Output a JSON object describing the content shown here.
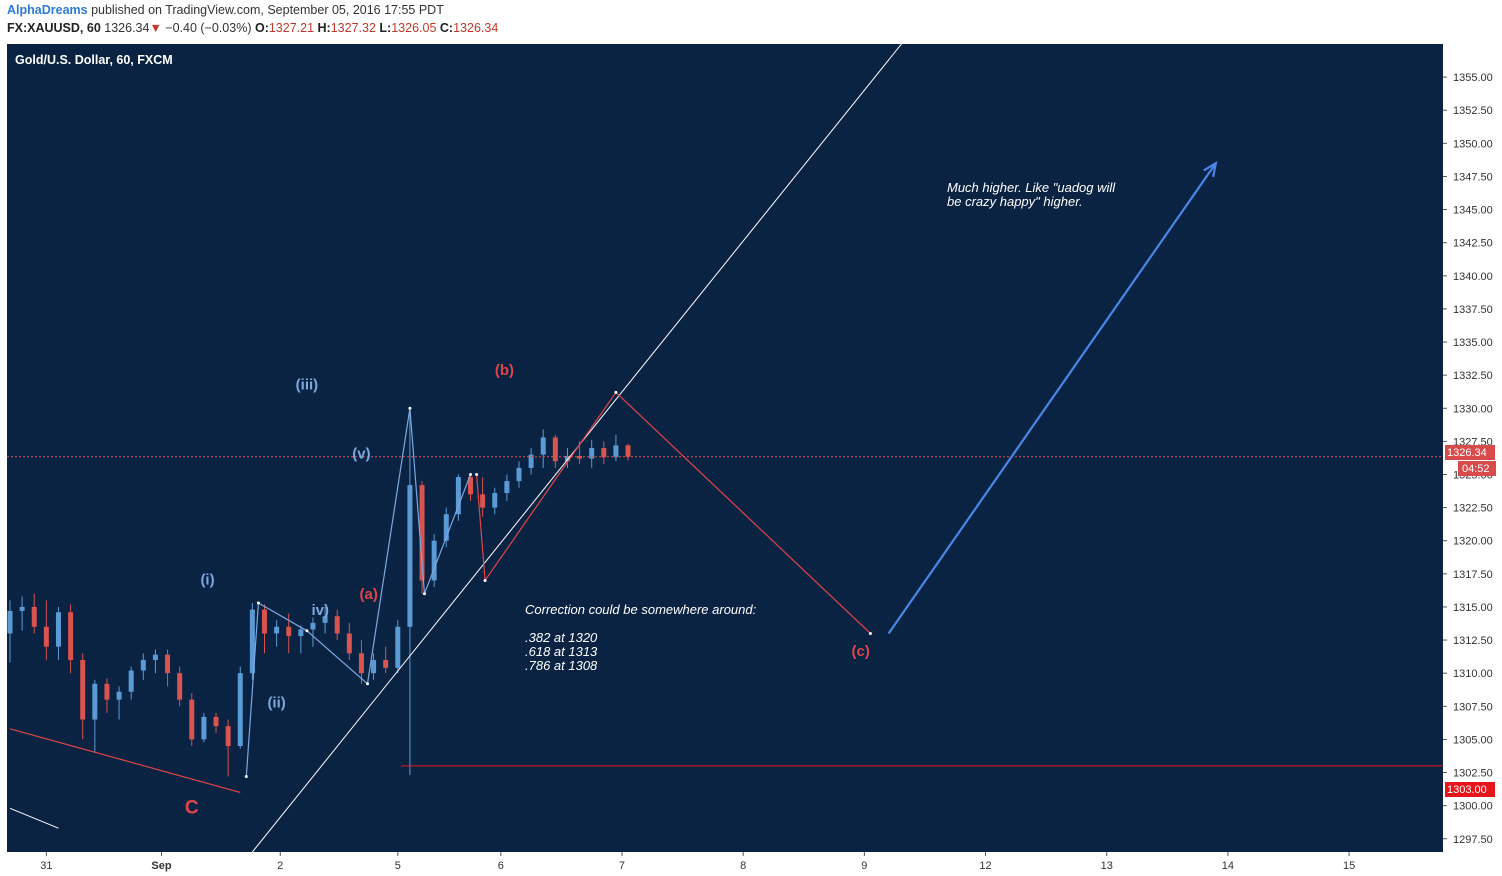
{
  "header": {
    "author": "AlphaDreams",
    "published_text": "published on TradingView.com, September 05, 2016 17:55 PDT",
    "symbol": "FX:XAUUSD, 60",
    "last": "1326.34",
    "change_arrow": "▼",
    "change": "−0.40 (−0.03%)",
    "open_label": "O:",
    "open": "1327.21",
    "high_label": "H:",
    "high": "1327.32",
    "low_label": "L:",
    "low": "1326.05",
    "close_label": "C:",
    "close": "1326.34"
  },
  "colors": {
    "background": "#0a2342",
    "up": "#5b9bd5",
    "down": "#d9534f",
    "wave_blue": "#7fa7e0",
    "wave_red": "#e0454a",
    "arrow": "#4a86e8",
    "trendline": "#ffffff"
  },
  "chart_data": {
    "type": "candlestick",
    "title": "Gold/U.S. Dollar, 60, FXCM",
    "y_range": [
      1296.5,
      1357.5
    ],
    "y_ticks": [
      "1297.50",
      "1300.00",
      "1302.50",
      "1305.00",
      "1307.50",
      "1310.00",
      "1312.50",
      "1315.00",
      "1317.50",
      "1320.00",
      "1322.50",
      "1325.00",
      "1327.50",
      "1330.00",
      "1332.50",
      "1335.00",
      "1337.50",
      "1340.00",
      "1342.50",
      "1345.00",
      "1347.50",
      "1350.00",
      "1352.50",
      "1355.00"
    ],
    "x_ticks": [
      "31",
      "Sep",
      "2",
      "5",
      "6",
      "7",
      "8",
      "9",
      "12",
      "13",
      "14",
      "15"
    ],
    "x_tick_index": [
      3,
      12.5,
      22.3,
      32,
      40.5,
      50.5,
      60.5,
      70.5,
      80.5,
      90.5,
      100.5,
      110.5
    ],
    "x_range": [
      0,
      118
    ],
    "current_price": "1326.34",
    "countdown": "04:52",
    "horizontal_level": "1303.00",
    "candles_ohlc": [
      [
        1313.0,
        1315.5,
        1310.8,
        1314.7
      ],
      [
        1314.7,
        1315.8,
        1313.2,
        1315.0
      ],
      [
        1315.0,
        1316.0,
        1313.0,
        1313.5
      ],
      [
        1313.5,
        1315.5,
        1311.0,
        1312.0
      ],
      [
        1312.0,
        1315.0,
        1311.0,
        1314.6
      ],
      [
        1314.6,
        1315.2,
        1310.0,
        1311.0
      ],
      [
        1311.0,
        1311.5,
        1305.0,
        1306.5
      ],
      [
        1306.5,
        1309.5,
        1304.0,
        1309.2
      ],
      [
        1309.2,
        1309.6,
        1307.0,
        1308.0
      ],
      [
        1308.0,
        1309.0,
        1306.5,
        1308.6
      ],
      [
        1308.6,
        1310.5,
        1308.0,
        1310.2
      ],
      [
        1310.2,
        1311.5,
        1309.5,
        1311.0
      ],
      [
        1311.0,
        1311.8,
        1310.0,
        1311.4
      ],
      [
        1311.4,
        1311.8,
        1309.0,
        1310.0
      ],
      [
        1310.0,
        1310.5,
        1307.5,
        1308.0
      ],
      [
        1308.0,
        1308.5,
        1304.5,
        1305.0
      ],
      [
        1305.0,
        1307.0,
        1304.8,
        1306.7
      ],
      [
        1306.7,
        1307.0,
        1305.5,
        1306.0
      ],
      [
        1306.0,
        1306.5,
        1302.2,
        1304.5
      ],
      [
        1304.5,
        1310.5,
        1304.3,
        1310.0
      ],
      [
        1310.0,
        1315.3,
        1309.5,
        1314.8
      ],
      [
        1314.8,
        1315.2,
        1311.5,
        1313.0
      ],
      [
        1313.0,
        1314.0,
        1312.0,
        1313.5
      ],
      [
        1313.5,
        1314.5,
        1311.5,
        1312.8
      ],
      [
        1312.8,
        1313.6,
        1311.5,
        1313.3
      ],
      [
        1313.3,
        1314.2,
        1312.0,
        1313.8
      ],
      [
        1313.8,
        1315.0,
        1313.0,
        1314.3
      ],
      [
        1314.3,
        1314.8,
        1312.5,
        1313.0
      ],
      [
        1313.0,
        1313.8,
        1311.0,
        1311.5
      ],
      [
        1311.5,
        1312.5,
        1309.2,
        1310.0
      ],
      [
        1310.0,
        1311.5,
        1309.5,
        1311.0
      ],
      [
        1311.0,
        1312.0,
        1310.0,
        1310.4
      ],
      [
        1310.4,
        1314.0,
        1310.0,
        1313.5
      ],
      [
        1313.5,
        1330.0,
        1302.3,
        1324.2
      ],
      [
        1324.2,
        1324.5,
        1316.0,
        1317.0
      ],
      [
        1317.0,
        1320.5,
        1316.5,
        1320.0
      ],
      [
        1320.0,
        1322.5,
        1319.5,
        1322.0
      ],
      [
        1322.0,
        1325.0,
        1321.5,
        1324.8
      ],
      [
        1324.8,
        1325.0,
        1323.0,
        1323.5
      ],
      [
        1323.5,
        1324.8,
        1321.8,
        1322.5
      ],
      [
        1322.5,
        1324.0,
        1322.0,
        1323.6
      ],
      [
        1323.6,
        1325.0,
        1323.0,
        1324.5
      ],
      [
        1324.5,
        1326.0,
        1324.0,
        1325.5
      ],
      [
        1325.5,
        1327.0,
        1325.0,
        1326.5
      ],
      [
        1326.5,
        1328.4,
        1325.5,
        1327.8
      ],
      [
        1327.8,
        1328.0,
        1325.5,
        1326.0
      ],
      [
        1326.0,
        1327.0,
        1325.5,
        1326.4
      ],
      [
        1326.4,
        1327.5,
        1325.8,
        1326.2
      ],
      [
        1326.2,
        1327.6,
        1325.5,
        1327.0
      ],
      [
        1327.0,
        1327.5,
        1325.8,
        1326.3
      ],
      [
        1326.3,
        1328.0,
        1326.0,
        1327.2
      ],
      [
        1327.2,
        1327.32,
        1326.05,
        1326.34
      ]
    ],
    "wave_blue_points": [
      [
        19.5,
        1302.2
      ],
      [
        20.5,
        1315.3
      ],
      [
        24.5,
        1313.2
      ],
      [
        29.5,
        1309.2
      ],
      [
        33.0,
        1330.0
      ],
      [
        34.2,
        1316.0
      ],
      [
        38.0,
        1325.0
      ]
    ],
    "wave_red_points": [
      [
        38.5,
        1325.0
      ],
      [
        39.2,
        1317.0
      ],
      [
        50.0,
        1331.2
      ],
      [
        71.0,
        1313.0
      ]
    ],
    "red_trend_C": [
      [
        0,
        1305.8
      ],
      [
        19.0,
        1301.0
      ]
    ],
    "white_channel_upper": [
      [
        20.0,
        1296.5
      ],
      [
        74.0,
        1358.0
      ]
    ],
    "white_channel_lower": [
      [
        0,
        1299.8
      ],
      [
        4.0,
        1298.3
      ]
    ],
    "blue_arrow": [
      [
        72.5,
        1313.0
      ],
      [
        99.5,
        1348.5
      ]
    ],
    "wave_labels": [
      {
        "text": "C",
        "x": 15.0,
        "y": 1299.4,
        "color": "red",
        "size": 19
      },
      {
        "text": "(i)",
        "x": 16.3,
        "y": 1316.7,
        "color": "blue",
        "size": 15
      },
      {
        "text": "(ii)",
        "x": 22.0,
        "y": 1307.4,
        "color": "blue",
        "size": 15
      },
      {
        "text": "(iii)",
        "x": 24.5,
        "y": 1331.4,
        "color": "blue",
        "size": 15
      },
      {
        "text": "iv)",
        "x": 25.6,
        "y": 1314.4,
        "color": "blue",
        "size": 15
      },
      {
        "text": "(v)",
        "x": 29.0,
        "y": 1326.2,
        "color": "blue",
        "size": 15
      },
      {
        "text": "(a)",
        "x": 29.6,
        "y": 1315.6,
        "color": "red",
        "size": 15
      },
      {
        "text": "(b)",
        "x": 40.8,
        "y": 1332.5,
        "color": "red",
        "size": 15
      },
      {
        "text": "(c)",
        "x": 70.2,
        "y": 1311.3,
        "color": "red",
        "size": 15
      }
    ],
    "annotations": {
      "correction_title": "Correction could be somewhere around:",
      "levels": [
        ".382 at 1320",
        ".618 at 1313",
        ".786 at 1308"
      ],
      "note_line1": "Much higher. Like \"uadog will",
      "note_line2": "be crazy happy\" higher."
    }
  }
}
